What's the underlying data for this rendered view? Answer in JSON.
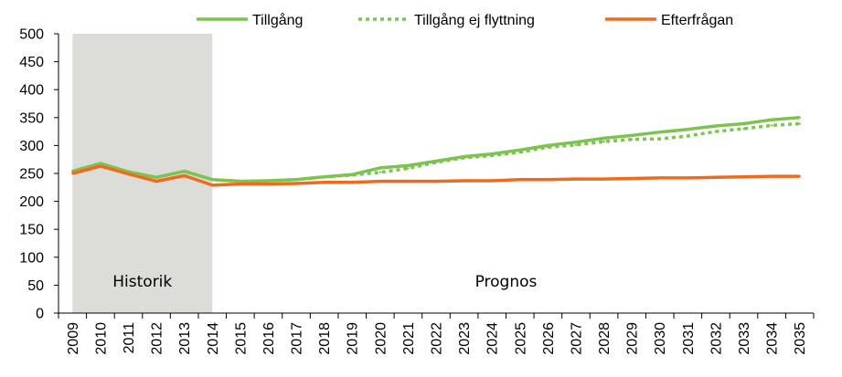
{
  "chart_data": {
    "type": "line",
    "title": "",
    "xlabel": "",
    "ylabel": "",
    "ylim": [
      0,
      500
    ],
    "ystep": 50,
    "grid": false,
    "legend_position": "top",
    "x": [
      2009,
      2010,
      2011,
      2012,
      2013,
      2014,
      2015,
      2016,
      2017,
      2018,
      2019,
      2020,
      2021,
      2022,
      2023,
      2024,
      2025,
      2026,
      2027,
      2028,
      2029,
      2030,
      2031,
      2032,
      2033,
      2034,
      2035
    ],
    "series": [
      {
        "name": "Tillgång",
        "color": "#7cc350",
        "style": "solid",
        "values": [
          254,
          268,
          253,
          243,
          254,
          239,
          236,
          237,
          239,
          244,
          248,
          260,
          264,
          272,
          280,
          285,
          292,
          300,
          306,
          313,
          318,
          324,
          329,
          335,
          339,
          346,
          350
        ]
      },
      {
        "name": "Tillgång ej flyttning",
        "color": "#7cc350",
        "style": "dotted",
        "values": [
          254,
          268,
          253,
          243,
          254,
          239,
          236,
          237,
          239,
          244,
          247,
          252,
          259,
          270,
          278,
          282,
          288,
          297,
          301,
          307,
          311,
          312,
          317,
          325,
          330,
          336,
          339
        ]
      },
      {
        "name": "Efterfrågan",
        "color": "#ed6b1f",
        "style": "solid",
        "values": [
          250,
          263,
          249,
          236,
          246,
          229,
          231,
          231,
          232,
          234,
          234,
          236,
          236,
          236,
          237,
          237,
          239,
          239,
          240,
          240,
          241,
          242,
          242,
          243,
          244,
          245,
          245
        ]
      }
    ],
    "shaded_region": {
      "from": 2009,
      "to": 2013,
      "color": "#dcdcd8"
    },
    "annotations": [
      {
        "text": "Historik",
        "x": 2011.5,
        "y": 57
      },
      {
        "text": "Prognos",
        "x": 2024.5,
        "y": 57
      }
    ]
  }
}
